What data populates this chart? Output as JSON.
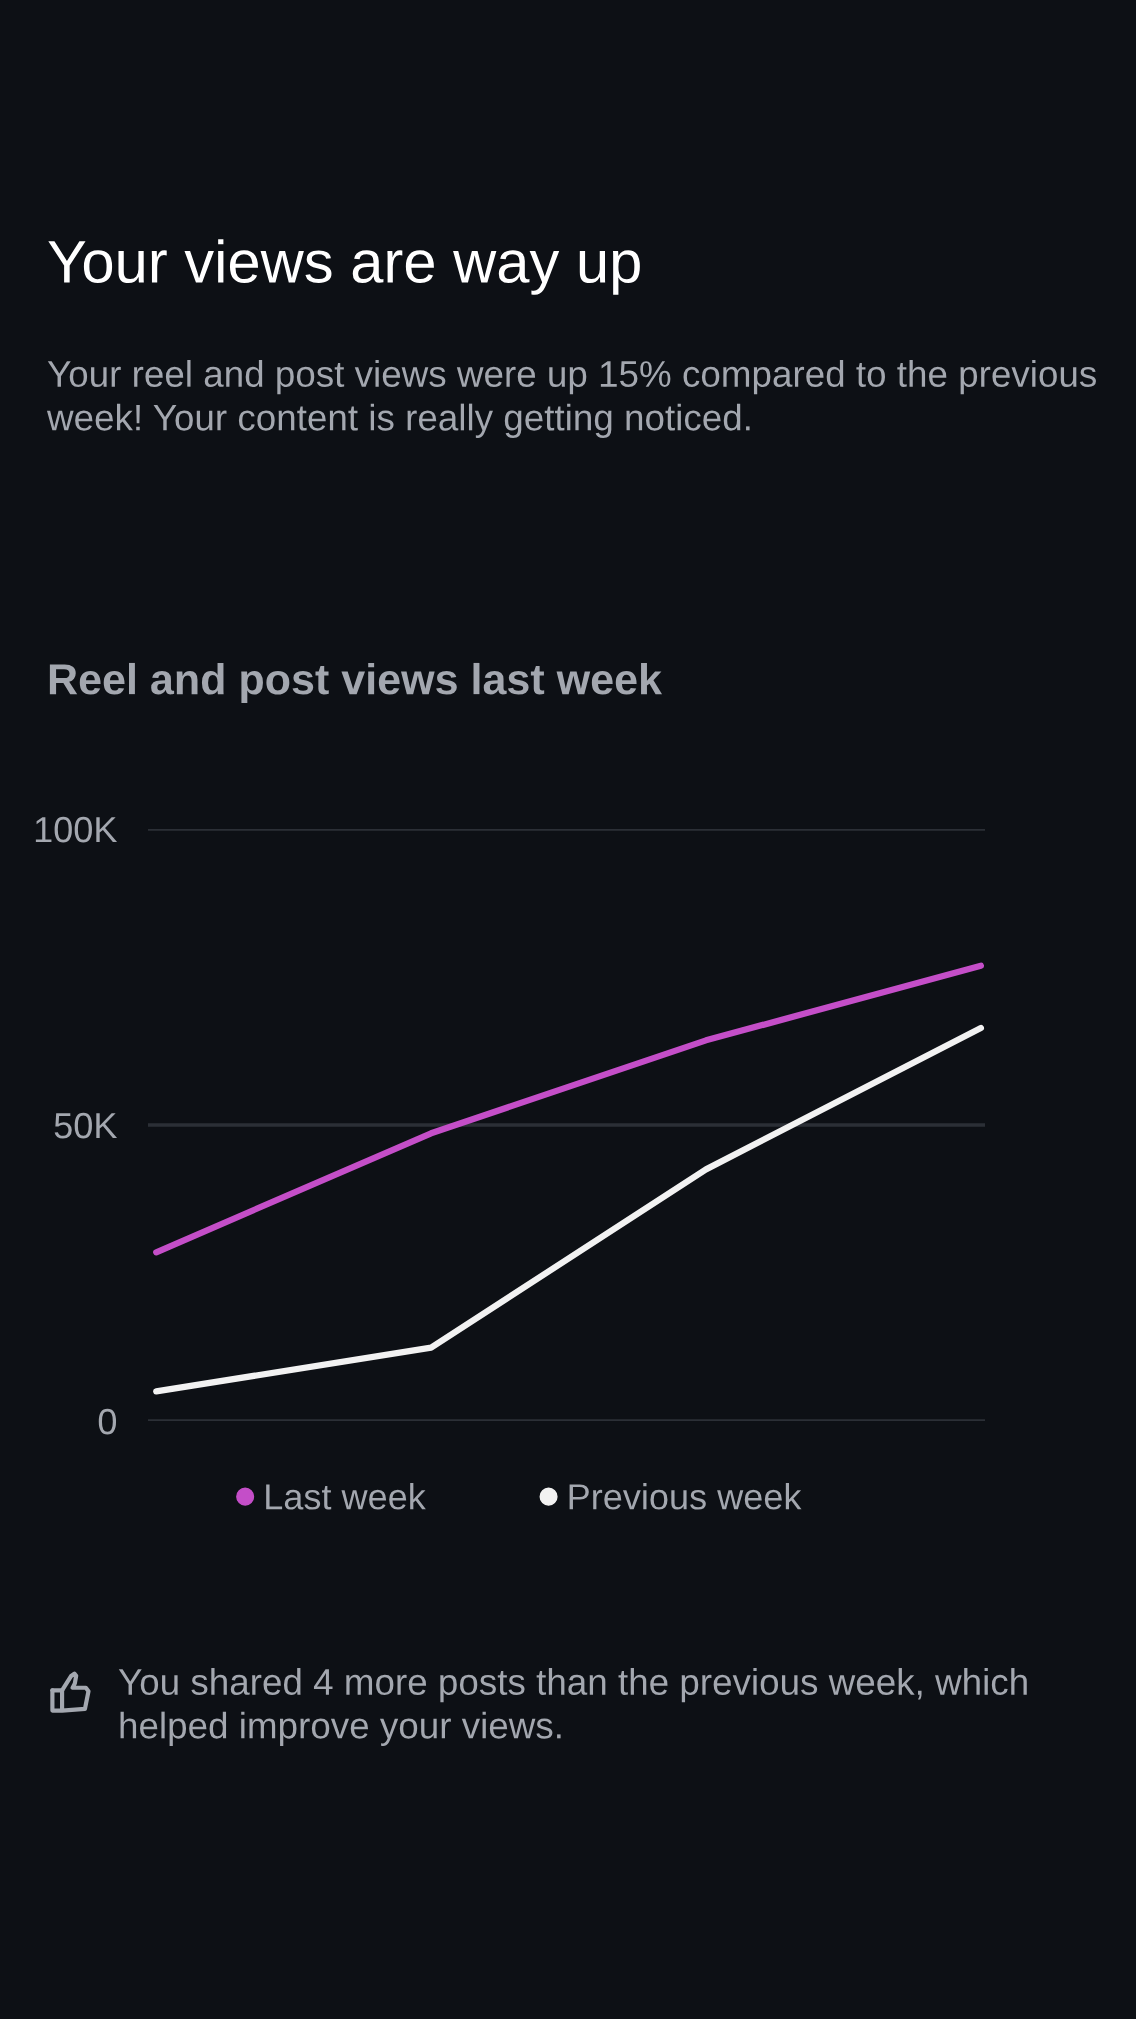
{
  "chart_data": {
    "type": "line",
    "title": "Reel and post views last week",
    "annotations": [
      "Your views are way up",
      "Your reel and post views were up 15% compared to the previous week! Your content is really getting noticed.",
      "You shared 4 more posts than the previous week, which helped improve your views."
    ],
    "categories": [
      null,
      null,
      null,
      null
    ],
    "series": [
      {
        "name": "Last week",
        "color": "#c44ec8",
        "values": [
          28500,
          48600,
          64300,
          76900
        ]
      },
      {
        "name": "Previous week",
        "color": "#f2f2f2",
        "values": [
          5000,
          12400,
          42500,
          66400
        ]
      }
    ],
    "ylim": [
      0,
      100000
    ],
    "yticks": [
      0,
      {
        "value": 50000,
        "label": "50K"
      },
      {
        "value": 100000,
        "label": "100K"
      }
    ],
    "grid": "y",
    "legend": "bottom",
    "tick_labels": "y",
    "marker": "none",
    "line_style": "solid"
  }
}
